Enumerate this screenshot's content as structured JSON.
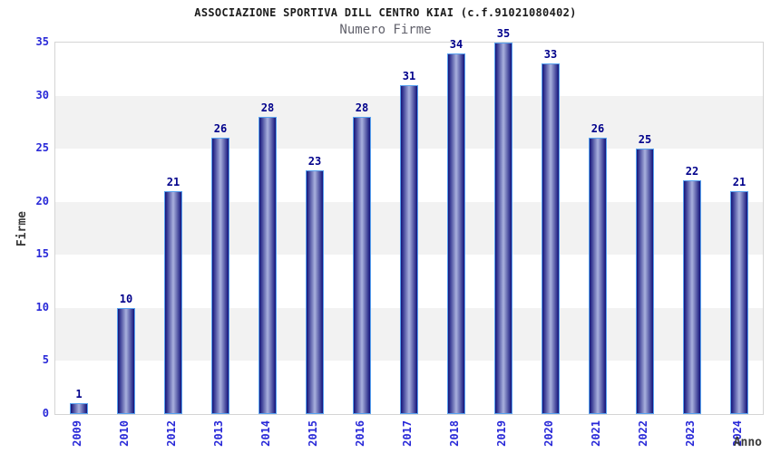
{
  "title": "ASSOCIAZIONE SPORTIVA DILL CENTRO KIAI (c.f.91021080402)",
  "subtitle": "Numero Firme",
  "chart_data": {
    "type": "bar",
    "title": "ASSOCIAZIONE SPORTIVA DILL CENTRO KIAI (c.f.91021080402)",
    "subtitle": "Numero Firme",
    "categories": [
      "2009",
      "2010",
      "2012",
      "2013",
      "2014",
      "2015",
      "2016",
      "2017",
      "2018",
      "2019",
      "2020",
      "2021",
      "2022",
      "2023",
      "2024"
    ],
    "values": [
      1,
      10,
      21,
      26,
      28,
      23,
      28,
      31,
      34,
      35,
      33,
      26,
      25,
      22,
      21
    ],
    "xlabel": "Anno",
    "ylabel": "Firme",
    "ylim": [
      0,
      35
    ],
    "yticks": [
      0,
      5,
      10,
      15,
      20,
      25,
      30,
      35
    ],
    "grid": "alternating-horizontal-bands",
    "legend": "none",
    "colors": {
      "bar_gradient_edge": "#13137a",
      "bar_gradient_mid": "#a9b1de",
      "bar_border": "#58a2f0",
      "value_label": "#00008b",
      "tick_label": "#2929d8",
      "band_gray": "#f2f2f2",
      "band_white": "#ffffff",
      "plot_border": "#d4d4d4",
      "title_color": "#1b1b1b",
      "subtitle_color": "#62626c",
      "axis_title_color": "#3a3a3a"
    }
  }
}
